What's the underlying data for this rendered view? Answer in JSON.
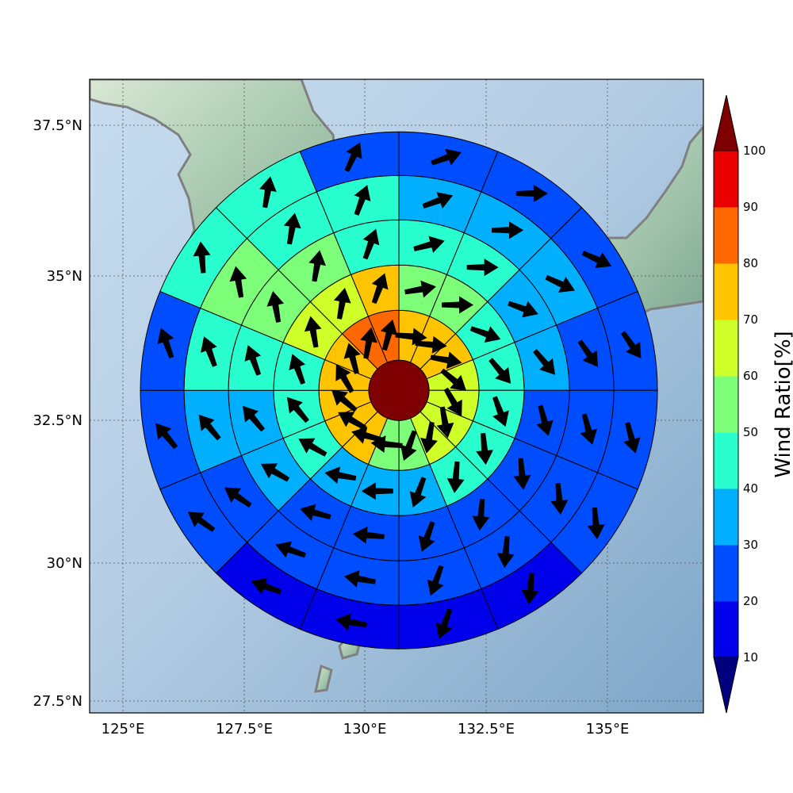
{
  "map": {
    "lon_ticks": [
      "125°E",
      "127.5°E",
      "130°E",
      "132.5°E",
      "135°E"
    ],
    "lat_ticks": [
      "37.5°N",
      "35°N",
      "32.5°N",
      "30°N",
      "27.5°N"
    ],
    "lon_range": [
      124.3,
      137.0
    ],
    "lat_range": [
      27.3,
      38.3
    ],
    "grid": true
  },
  "colorbar": {
    "label": "Wind Ratio[%]",
    "ticks": [
      "10",
      "20",
      "30",
      "40",
      "50",
      "60",
      "70",
      "80",
      "90",
      "100"
    ],
    "under_color": "#00007f",
    "over_color": "#7f0000",
    "colors": [
      "#0000ea",
      "#004cff",
      "#00b0ff",
      "#29ffce",
      "#7dff7a",
      "#ceff29",
      "#ffc400",
      "#ff6800",
      "#ea0000"
    ]
  },
  "polar_grid": {
    "center_lon": 130.7,
    "center_lat": 32.9,
    "sectors": 16,
    "center_color": "#7f0000",
    "rings": [
      {
        "ratios": [
          72,
          72,
          72,
          62,
          62,
          62,
          62,
          52,
          52,
          72,
          72,
          72,
          72,
          72,
          82,
          82
        ],
        "wind_dir_deg": [
          95,
          95,
          100,
          130,
          150,
          170,
          190,
          200,
          275,
          285,
          300,
          310,
          330,
          345,
          10,
          15
        ]
      },
      {
        "ratios": [
          52,
          52,
          42,
          42,
          42,
          42,
          42,
          32,
          32,
          32,
          42,
          42,
          42,
          62,
          62,
          72
        ],
        "wind_dir_deg": [
          80,
          90,
          110,
          140,
          160,
          175,
          185,
          200,
          270,
          280,
          300,
          320,
          340,
          350,
          10,
          20
        ]
      },
      {
        "ratios": [
          42,
          42,
          32,
          32,
          22,
          22,
          22,
          22,
          22,
          22,
          32,
          32,
          42,
          52,
          52,
          42
        ],
        "wind_dir_deg": [
          75,
          90,
          110,
          140,
          165,
          175,
          185,
          200,
          275,
          285,
          300,
          320,
          340,
          350,
          10,
          20
        ]
      },
      {
        "ratios": [
          32,
          32,
          32,
          22,
          22,
          22,
          22,
          22,
          22,
          22,
          22,
          32,
          42,
          52,
          42,
          42
        ],
        "wind_dir_deg": [
          70,
          90,
          115,
          145,
          165,
          175,
          185,
          200,
          280,
          290,
          305,
          320,
          340,
          350,
          10,
          20
        ]
      },
      {
        "ratios": [
          22,
          22,
          22,
          22,
          22,
          22,
          12,
          12,
          12,
          12,
          22,
          22,
          22,
          42,
          42,
          22
        ],
        "wind_dir_deg": [
          70,
          90,
          115,
          145,
          165,
          175,
          185,
          200,
          280,
          290,
          305,
          320,
          340,
          355,
          10,
          25
        ]
      },
      {
        "ratios": [
          22,
          22,
          22,
          22,
          22,
          12,
          12,
          12,
          12,
          12,
          22,
          22,
          22,
          42,
          42,
          22
        ],
        "wind_dir_deg": [
          65,
          90,
          120,
          150,
          165,
          180,
          190,
          205,
          285,
          295,
          310,
          325,
          340,
          355,
          15,
          25
        ]
      }
    ]
  },
  "icons": {
    "land": "landmass-shaded-relief",
    "coastline": "coastline-outline",
    "arrow": "wind-direction-arrow"
  }
}
